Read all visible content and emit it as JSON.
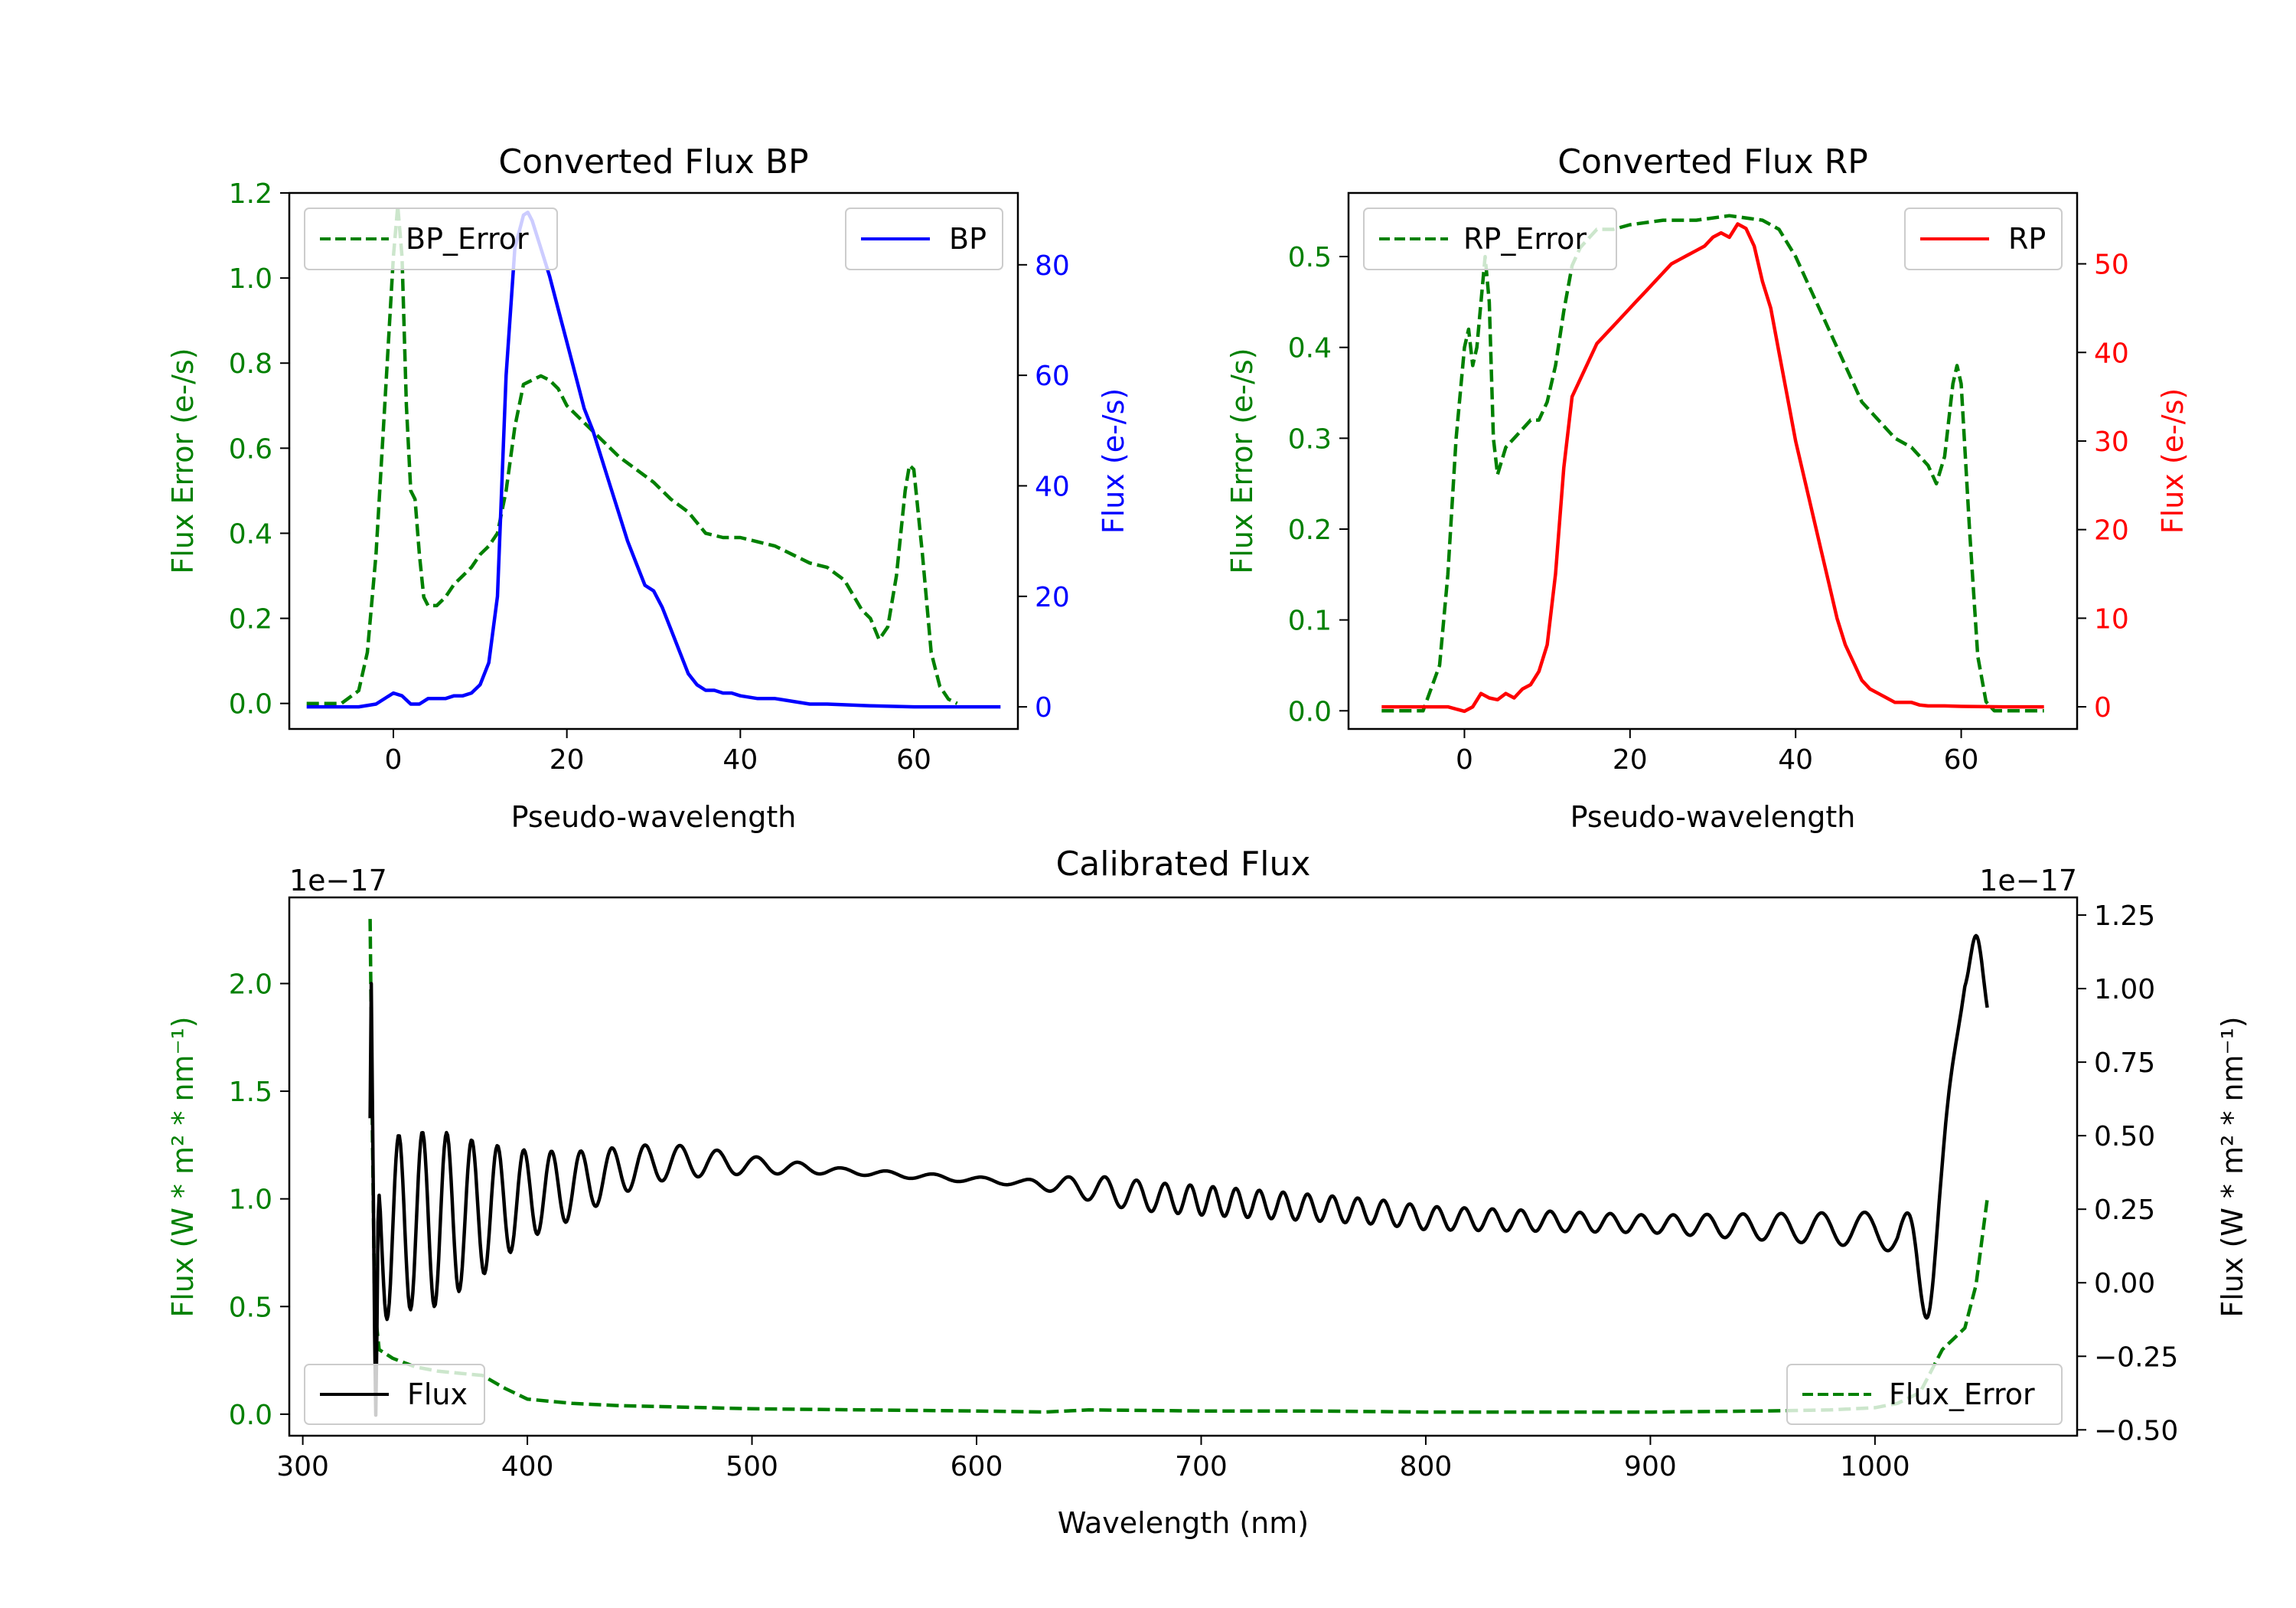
{
  "chart_data": [
    {
      "id": "bp",
      "type": "line",
      "title": "Converted Flux BP",
      "xlabel": "Pseudo-wavelength",
      "ylabel_left": "Flux Error (e-/s)",
      "ylabel_right": "Flux (e-/s)",
      "left_color": "#008000",
      "right_color": "#0000ff",
      "xlim": [
        -12.0,
        72.0
      ],
      "ylim_left": [
        -0.06,
        1.2
      ],
      "ylim_right": [
        -4.0,
        93.0
      ],
      "xticks": [
        0,
        20,
        40,
        60
      ],
      "xtick_labels": [
        "0",
        "20",
        "40",
        "60"
      ],
      "yticks_left": [
        0.0,
        0.2,
        0.4,
        0.6,
        0.8,
        1.0,
        1.2
      ],
      "ytick_labels_left": [
        "0.0",
        "0.2",
        "0.4",
        "0.6",
        "0.8",
        "1.0",
        "1.2"
      ],
      "yticks_right": [
        0,
        20,
        40,
        60,
        80
      ],
      "ytick_labels_right": [
        "0",
        "20",
        "40",
        "60",
        "80"
      ],
      "legend_left": "BP_Error",
      "legend_right": "BP",
      "series": [
        {
          "name": "BP_Error",
          "axis": "left",
          "color": "#008000",
          "dash": true,
          "x": [
            -10,
            -6,
            -4,
            -3,
            -2,
            -1,
            0,
            0.5,
            1,
            1.5,
            2,
            2.5,
            3,
            3.5,
            4,
            5,
            6,
            7,
            8,
            9,
            10,
            11,
            12,
            13,
            14,
            15,
            16,
            17,
            18,
            19,
            20,
            22,
            24,
            26,
            28,
            30,
            32,
            34,
            36,
            38,
            40,
            42,
            44,
            46,
            48,
            50,
            52,
            54,
            55,
            56,
            57,
            58,
            59,
            59.5,
            60,
            61,
            62,
            63,
            64,
            65
          ],
          "y": [
            0.0,
            0.0,
            0.03,
            0.12,
            0.35,
            0.7,
            1.05,
            1.17,
            1.05,
            0.7,
            0.5,
            0.48,
            0.35,
            0.25,
            0.23,
            0.23,
            0.25,
            0.28,
            0.3,
            0.32,
            0.35,
            0.37,
            0.4,
            0.5,
            0.65,
            0.75,
            0.76,
            0.77,
            0.76,
            0.74,
            0.7,
            0.66,
            0.62,
            0.58,
            0.55,
            0.52,
            0.48,
            0.45,
            0.4,
            0.39,
            0.39,
            0.38,
            0.37,
            0.35,
            0.33,
            0.32,
            0.29,
            0.22,
            0.2,
            0.15,
            0.18,
            0.3,
            0.5,
            0.56,
            0.55,
            0.35,
            0.12,
            0.04,
            0.01,
            0.0
          ]
        },
        {
          "name": "BP",
          "axis": "right",
          "color": "#0000ff",
          "dash": false,
          "x": [
            -10,
            -4,
            -2,
            0,
            1,
            2,
            3,
            4,
            5,
            6,
            7,
            8,
            9,
            10,
            11,
            12,
            13,
            14,
            15,
            15.5,
            16,
            17,
            18,
            19,
            20,
            21,
            22,
            23,
            24,
            25,
            26,
            27,
            28,
            29,
            30,
            31,
            32,
            33,
            34,
            35,
            36,
            37,
            38,
            39,
            40,
            42,
            44,
            46,
            48,
            50,
            55,
            60,
            70
          ],
          "y": [
            0,
            0,
            0.5,
            2.5,
            2.0,
            0.5,
            0.5,
            1.5,
            1.5,
            1.5,
            2.0,
            2.0,
            2.5,
            4.0,
            8.0,
            20.0,
            60.0,
            83.0,
            89.0,
            89.5,
            88.0,
            83.0,
            78.0,
            72.0,
            66.0,
            60.0,
            54.0,
            50.0,
            45.0,
            40.0,
            35.0,
            30.0,
            26.0,
            22.0,
            21.0,
            18.0,
            14.0,
            10.0,
            6.0,
            4.0,
            3.0,
            3.0,
            2.5,
            2.5,
            2.0,
            1.5,
            1.5,
            1.0,
            0.5,
            0.5,
            0.2,
            0,
            0
          ]
        }
      ]
    },
    {
      "id": "rp",
      "type": "line",
      "title": "Converted Flux RP",
      "xlabel": "Pseudo-wavelength",
      "ylabel_left": "Flux Error (e-/s)",
      "ylabel_right": "Flux (e-/s)",
      "left_color": "#008000",
      "right_color": "#ff0000",
      "xlim": [
        -14.0,
        74.0
      ],
      "ylim_left": [
        -0.02,
        0.57
      ],
      "ylim_right": [
        -2.5,
        58.0
      ],
      "xticks": [
        0,
        20,
        40,
        60
      ],
      "xtick_labels": [
        "0",
        "20",
        "40",
        "60"
      ],
      "yticks_left": [
        0.0,
        0.1,
        0.2,
        0.3,
        0.4,
        0.5
      ],
      "ytick_labels_left": [
        "0.0",
        "0.1",
        "0.2",
        "0.3",
        "0.4",
        "0.5"
      ],
      "yticks_right": [
        0,
        10,
        20,
        30,
        40,
        50
      ],
      "ytick_labels_right": [
        "0",
        "10",
        "20",
        "30",
        "40",
        "50"
      ],
      "legend_left": "RP_Error",
      "legend_right": "RP",
      "series": [
        {
          "name": "RP_Error",
          "axis": "left",
          "color": "#008000",
          "dash": true,
          "x": [
            -10,
            -5,
            -3,
            -2,
            -1,
            0,
            0.5,
            1,
            1.5,
            2,
            2.5,
            3,
            3.5,
            4,
            5,
            6,
            7,
            8,
            9,
            10,
            11,
            12,
            13,
            14,
            15,
            16,
            18,
            20,
            24,
            28,
            32,
            36,
            38,
            40,
            42,
            44,
            46,
            48,
            50,
            52,
            54,
            55,
            56,
            57,
            58,
            59,
            59.5,
            60,
            61,
            62,
            63,
            64,
            65,
            70
          ],
          "y": [
            0.0,
            0.0,
            0.05,
            0.15,
            0.3,
            0.4,
            0.42,
            0.38,
            0.4,
            0.45,
            0.5,
            0.45,
            0.3,
            0.26,
            0.29,
            0.3,
            0.31,
            0.32,
            0.32,
            0.34,
            0.38,
            0.44,
            0.49,
            0.51,
            0.52,
            0.53,
            0.53,
            0.535,
            0.54,
            0.54,
            0.545,
            0.54,
            0.53,
            0.5,
            0.46,
            0.42,
            0.38,
            0.34,
            0.32,
            0.3,
            0.29,
            0.28,
            0.27,
            0.25,
            0.28,
            0.36,
            0.38,
            0.36,
            0.2,
            0.06,
            0.01,
            0.0,
            0.0,
            0.0
          ]
        },
        {
          "name": "RP",
          "axis": "right",
          "color": "#ff0000",
          "dash": false,
          "x": [
            -10,
            -4,
            -2,
            0,
            1,
            2,
            3,
            4,
            5,
            6,
            7,
            8,
            9,
            10,
            11,
            12,
            13,
            14,
            15,
            16,
            17,
            18,
            19,
            20,
            21,
            22,
            23,
            24,
            25,
            26,
            27,
            28,
            29,
            30,
            31,
            32,
            33,
            34,
            35,
            36,
            37,
            38,
            39,
            40,
            41,
            42,
            43,
            44,
            45,
            46,
            47,
            48,
            49,
            50,
            51,
            52,
            53,
            54,
            55,
            56,
            58,
            60,
            65,
            70
          ],
          "y": [
            0,
            0,
            0,
            -0.5,
            0,
            1.5,
            1.0,
            0.8,
            1.5,
            1.0,
            2.0,
            2.5,
            4.0,
            7.0,
            15.0,
            27.0,
            35.0,
            37.0,
            39.0,
            41.0,
            42.0,
            43.0,
            44.0,
            45.0,
            46.0,
            47.0,
            48.0,
            49.0,
            50.0,
            50.5,
            51.0,
            51.5,
            52.0,
            53.0,
            53.5,
            53.0,
            54.5,
            54.0,
            52.0,
            48.0,
            45.0,
            40.0,
            35.0,
            30.0,
            26.0,
            22.0,
            18.0,
            14.0,
            10.0,
            7.0,
            5.0,
            3.0,
            2.0,
            1.5,
            1.0,
            0.5,
            0.5,
            0.5,
            0.2,
            0.1,
            0.1,
            0.05,
            0,
            0
          ]
        }
      ]
    },
    {
      "id": "cal",
      "type": "line",
      "title": "Calibrated Flux",
      "xlabel": "Wavelength (nm)",
      "ylabel_left": "Flux (W * m² * nm⁻¹)",
      "ylabel_right": "Flux (W * m² * nm⁻¹)",
      "left_color": "#008000",
      "right_color": "#000000",
      "offset_left": "1e−17",
      "offset_right": "1e−17",
      "xlim": [
        294,
        1090
      ],
      "ylim_left": [
        -0.1,
        2.4
      ],
      "ylim_right": [
        -0.52,
        1.31
      ],
      "xticks": [
        300,
        400,
        500,
        600,
        700,
        800,
        900,
        1000
      ],
      "xtick_labels": [
        "300",
        "400",
        "500",
        "600",
        "700",
        "800",
        "900",
        "1000"
      ],
      "yticks_left": [
        0.0,
        0.5,
        1.0,
        1.5,
        2.0
      ],
      "ytick_labels_left": [
        "0.0",
        "0.5",
        "1.0",
        "1.5",
        "2.0"
      ],
      "yticks_right": [
        -0.5,
        -0.25,
        0.0,
        0.25,
        0.5,
        0.75,
        1.0,
        1.25
      ],
      "ytick_labels_right": [
        "−0.50",
        "−0.25",
        "0.00",
        "0.25",
        "0.50",
        "0.75",
        "1.00",
        "1.25"
      ],
      "legend_left": "Flux",
      "legend_right": "Flux_Error",
      "series": [
        {
          "name": "Flux_Error",
          "axis": "left",
          "color": "#008000",
          "dash": true,
          "x": [
            330,
            331,
            332,
            334,
            340,
            350,
            360,
            370,
            380,
            390,
            400,
            420,
            440,
            460,
            480,
            500,
            550,
            600,
            630,
            650,
            700,
            750,
            800,
            850,
            900,
            950,
            980,
            1000,
            1010,
            1020,
            1030,
            1035,
            1040,
            1045,
            1050
          ],
          "y": [
            2.3,
            1.3,
            0.5,
            0.3,
            0.26,
            0.22,
            0.2,
            0.19,
            0.18,
            0.12,
            0.07,
            0.05,
            0.04,
            0.035,
            0.03,
            0.025,
            0.02,
            0.015,
            0.01,
            0.02,
            0.015,
            0.015,
            0.01,
            0.01,
            0.01,
            0.015,
            0.02,
            0.03,
            0.05,
            0.1,
            0.3,
            0.35,
            0.4,
            0.6,
            1.0
          ]
        }
      ],
      "flux_model": {
        "name": "Flux",
        "axis": "right",
        "color": "#000000",
        "x_range": [
          330,
          1050
        ],
        "baseline_x": [
          330,
          340,
          360,
          380,
          400,
          420,
          440,
          460,
          480,
          500,
          520,
          540,
          560,
          580,
          600,
          620,
          640,
          660,
          680,
          700,
          720,
          740,
          760,
          780,
          800,
          850,
          900,
          950,
          1000,
          1010,
          1020,
          1030,
          1040,
          1050
        ],
        "baseline_y": [
          0.1,
          0.2,
          0.22,
          0.25,
          0.3,
          0.33,
          0.38,
          0.41,
          0.41,
          0.4,
          0.39,
          0.38,
          0.37,
          0.36,
          0.35,
          0.34,
          0.33,
          0.31,
          0.29,
          0.28,
          0.27,
          0.26,
          0.25,
          0.24,
          0.22,
          0.21,
          0.2,
          0.19,
          0.18,
          0.16,
          0.25,
          0.5,
          0.9,
          0.8
        ],
        "wiggle_x": [
          330,
          360,
          400,
          440,
          500,
          540,
          620,
          660,
          700,
          800,
          900,
          1000
        ],
        "wiggle_amp": [
          0.3,
          0.3,
          0.15,
          0.08,
          0.03,
          0.01,
          0.01,
          0.05,
          0.05,
          0.04,
          0.03,
          0.06
        ],
        "wiggle_period_x": [
          330,
          400,
          500,
          600,
          700,
          800,
          900,
          1000
        ],
        "wiggle_period": [
          10,
          12,
          18,
          22,
          10,
          12,
          14,
          20
        ],
        "spikes": [
          {
            "x": 330.5,
            "y": 1.02,
            "width": 0.6
          },
          {
            "x": 332.5,
            "y": -0.45,
            "width": 0.8
          },
          {
            "x": 1023,
            "y": -0.12,
            "width": 5
          },
          {
            "x": 1045,
            "y": 1.18,
            "width": 5
          }
        ]
      }
    }
  ]
}
